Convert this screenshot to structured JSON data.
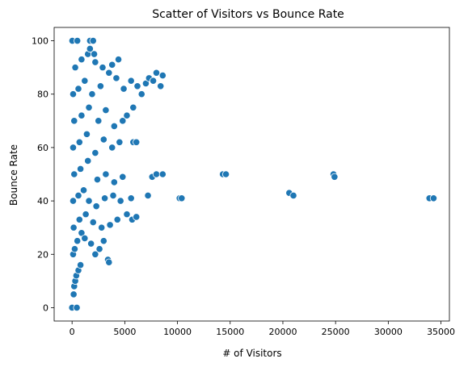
{
  "chart_data": {
    "type": "scatter",
    "title": "Scatter of Visitors vs Bounce Rate",
    "xlabel": "# of Visitors",
    "ylabel": "Bounce Rate",
    "xlim": [
      -1700,
      35800
    ],
    "ylim": [
      -5,
      105
    ],
    "xticks": [
      0,
      5000,
      10000,
      15000,
      20000,
      25000,
      30000,
      35000
    ],
    "yticks": [
      0,
      20,
      40,
      60,
      80,
      100
    ],
    "grid": false,
    "legend": "none",
    "colors": {
      "marker": "#1f77b4",
      "edge": "#ffffff"
    },
    "series": [
      {
        "points": [
          [
            0,
            0
          ],
          [
            450,
            0
          ],
          [
            20,
            100
          ],
          [
            500,
            100
          ],
          [
            1700,
            100
          ],
          [
            2000,
            100
          ],
          [
            150,
            5
          ],
          [
            200,
            8
          ],
          [
            300,
            10
          ],
          [
            400,
            12
          ],
          [
            600,
            14
          ],
          [
            800,
            16
          ],
          [
            100,
            20
          ],
          [
            250,
            22
          ],
          [
            500,
            25
          ],
          [
            900,
            28
          ],
          [
            1200,
            26
          ],
          [
            1800,
            24
          ],
          [
            2200,
            20
          ],
          [
            2600,
            22
          ],
          [
            3000,
            25
          ],
          [
            3400,
            18
          ],
          [
            3500,
            17
          ],
          [
            150,
            30
          ],
          [
            700,
            33
          ],
          [
            1300,
            35
          ],
          [
            2000,
            32
          ],
          [
            2800,
            30
          ],
          [
            3600,
            31
          ],
          [
            4300,
            33
          ],
          [
            100,
            40
          ],
          [
            600,
            42
          ],
          [
            1100,
            44
          ],
          [
            1600,
            40
          ],
          [
            2300,
            38
          ],
          [
            3100,
            41
          ],
          [
            3900,
            42
          ],
          [
            4600,
            40
          ],
          [
            5200,
            35
          ],
          [
            5700,
            33
          ],
          [
            6100,
            34
          ],
          [
            200,
            50
          ],
          [
            800,
            52
          ],
          [
            1500,
            55
          ],
          [
            2400,
            48
          ],
          [
            3200,
            50
          ],
          [
            4000,
            47
          ],
          [
            4800,
            49
          ],
          [
            5600,
            41
          ],
          [
            7200,
            42
          ],
          [
            7600,
            49
          ],
          [
            8000,
            50
          ],
          [
            8600,
            50
          ],
          [
            10200,
            41
          ],
          [
            10400,
            41
          ],
          [
            14300,
            50
          ],
          [
            14600,
            50
          ],
          [
            20600,
            43
          ],
          [
            21000,
            42
          ],
          [
            24800,
            50
          ],
          [
            24900,
            49
          ],
          [
            33900,
            41
          ],
          [
            34300,
            41
          ],
          [
            100,
            60
          ],
          [
            700,
            62
          ],
          [
            1400,
            65
          ],
          [
            2200,
            58
          ],
          [
            3000,
            63
          ],
          [
            3800,
            60
          ],
          [
            4500,
            62
          ],
          [
            5800,
            62
          ],
          [
            6100,
            62
          ],
          [
            4000,
            68
          ],
          [
            4800,
            70
          ],
          [
            5200,
            72
          ],
          [
            5800,
            75
          ],
          [
            200,
            70
          ],
          [
            900,
            72
          ],
          [
            1600,
            75
          ],
          [
            2500,
            70
          ],
          [
            3200,
            74
          ],
          [
            100,
            80
          ],
          [
            600,
            82
          ],
          [
            1200,
            85
          ],
          [
            1900,
            80
          ],
          [
            2700,
            83
          ],
          [
            3500,
            88
          ],
          [
            4200,
            86
          ],
          [
            4900,
            82
          ],
          [
            5600,
            85
          ],
          [
            6200,
            83
          ],
          [
            6600,
            80
          ],
          [
            7000,
            84
          ],
          [
            7300,
            86
          ],
          [
            7700,
            85
          ],
          [
            8000,
            88
          ],
          [
            8400,
            83
          ],
          [
            8600,
            87
          ],
          [
            300,
            90
          ],
          [
            900,
            93
          ],
          [
            1500,
            95
          ],
          [
            2200,
            92
          ],
          [
            2900,
            90
          ],
          [
            3800,
            91
          ],
          [
            4400,
            93
          ],
          [
            1700,
            97
          ],
          [
            2100,
            95
          ]
        ]
      }
    ]
  }
}
